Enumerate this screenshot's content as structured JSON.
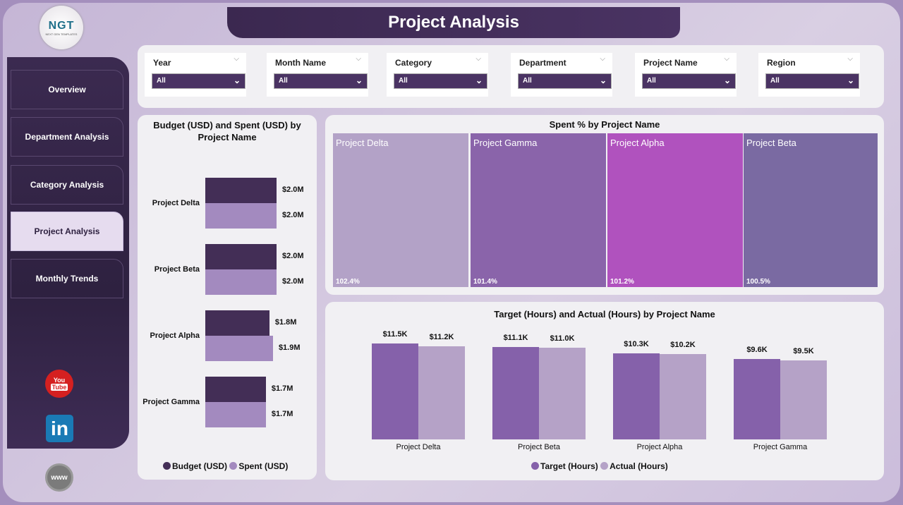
{
  "title": "Project Analysis",
  "logo": {
    "text": "NGT",
    "subtext": "NEXT GEN TEMPLATES"
  },
  "nav": [
    {
      "label": "Overview"
    },
    {
      "label": "Department Analysis"
    },
    {
      "label": "Category Analysis"
    },
    {
      "label": "Project Analysis",
      "active": true
    },
    {
      "label": "Monthly Trends"
    }
  ],
  "social": {
    "youtube": "youtube-icon",
    "linkedin": "linkedin-icon",
    "web": "globe-www-icon",
    "youtube_text1": "You",
    "youtube_text2": "Tube",
    "linkedin_text": "in",
    "web_text": "www"
  },
  "filters": [
    {
      "label": "Year",
      "value": "All"
    },
    {
      "label": "Month Name",
      "value": "All"
    },
    {
      "label": "Category",
      "value": "All"
    },
    {
      "label": "Department",
      "value": "All"
    },
    {
      "label": "Project Name",
      "value": "All"
    },
    {
      "label": "Region",
      "value": "All"
    }
  ],
  "colors": {
    "budget": "#432e56",
    "spent": "#a38abf",
    "target": "#8561aa",
    "actual": "#b5a2c7"
  },
  "chart_data": [
    {
      "type": "bar",
      "orientation": "horizontal",
      "title": "Budget (USD) and Spent (USD) by Project Name",
      "categories": [
        "Project Delta",
        "Project Beta",
        "Project Alpha",
        "Project Gamma"
      ],
      "series": [
        {
          "name": "Budget (USD)",
          "values": [
            2.0,
            2.0,
            1.8,
            1.7
          ],
          "labels": [
            "$2.0M",
            "$2.0M",
            "$1.8M",
            "$1.7M"
          ]
        },
        {
          "name": "Spent (USD)",
          "values": [
            2.0,
            2.0,
            1.9,
            1.7
          ],
          "labels": [
            "$2.0M",
            "$2.0M",
            "$1.9M",
            "$1.7M"
          ]
        }
      ],
      "unit": "M USD",
      "legend": "bottom"
    },
    {
      "type": "treemap",
      "title": "Spent % by Project Name",
      "categories": [
        "Project Delta",
        "Project Gamma",
        "Project Alpha",
        "Project Beta"
      ],
      "values": [
        102.4,
        101.4,
        101.2,
        100.5
      ],
      "labels": [
        "102.4%",
        "101.4%",
        "101.2%",
        "100.5%"
      ],
      "colors": [
        "#b3a2c7",
        "#8a64aa",
        "#b052be",
        "#7a6aa2"
      ]
    },
    {
      "type": "bar",
      "title": "Target (Hours) and Actual (Hours) by Project Name",
      "categories": [
        "Project Delta",
        "Project Beta",
        "Project Alpha",
        "Project Gamma"
      ],
      "series": [
        {
          "name": "Target (Hours)",
          "values": [
            11.5,
            11.1,
            10.3,
            9.6
          ],
          "labels": [
            "$11.5K",
            "$11.1K",
            "$10.3K",
            "$9.6K"
          ]
        },
        {
          "name": "Actual (Hours)",
          "values": [
            11.2,
            11.0,
            10.2,
            9.5
          ],
          "labels": [
            "$11.2K",
            "$11.0K",
            "$10.2K",
            "$9.5K"
          ]
        }
      ],
      "unit": "K",
      "legend": "bottom"
    }
  ]
}
